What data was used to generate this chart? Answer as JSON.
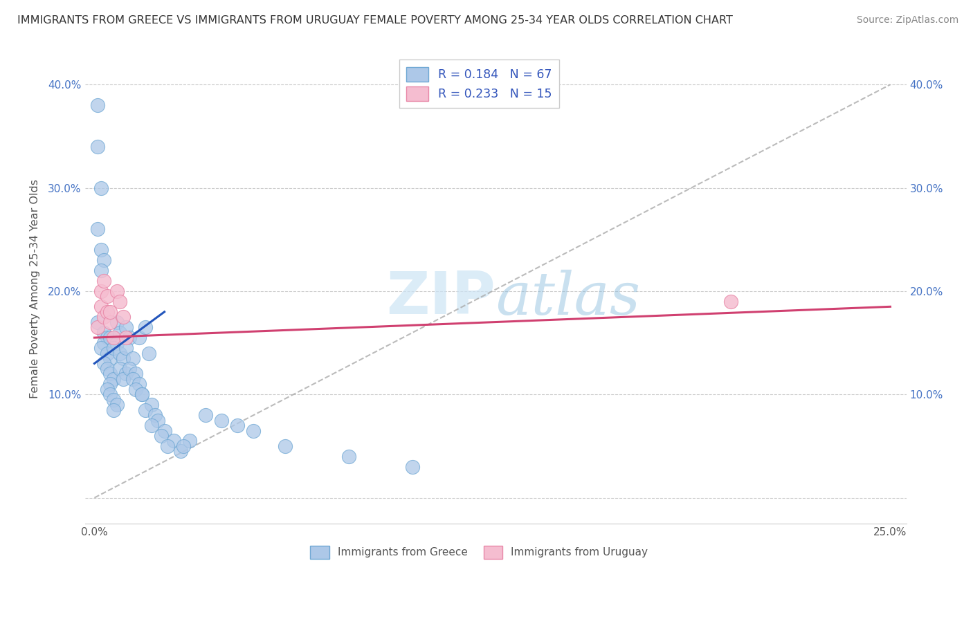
{
  "title": "IMMIGRANTS FROM GREECE VS IMMIGRANTS FROM URUGUAY FEMALE POVERTY AMONG 25-34 YEAR OLDS CORRELATION CHART",
  "source": "Source: ZipAtlas.com",
  "ylabel": "Female Poverty Among 25-34 Year Olds",
  "xlim": [
    -0.003,
    0.255
  ],
  "ylim": [
    -0.025,
    0.43
  ],
  "xtick_positions": [
    0.0,
    0.05,
    0.1,
    0.15,
    0.2,
    0.25
  ],
  "xtick_labels": [
    "0.0%",
    "",
    "",
    "",
    "",
    "25.0%"
  ],
  "ytick_positions": [
    0.0,
    0.1,
    0.2,
    0.3,
    0.4
  ],
  "ytick_labels": [
    "",
    "10.0%",
    "20.0%",
    "30.0%",
    "40.0%"
  ],
  "greece_color": "#adc8e8",
  "greece_edge": "#6fa8d4",
  "uruguay_color": "#f5bdd0",
  "uruguay_edge": "#e888a8",
  "greece_R": 0.184,
  "greece_N": 67,
  "uruguay_R": 0.233,
  "uruguay_N": 15,
  "greece_line_color": "#2255bb",
  "uruguay_line_color": "#d04070",
  "diag_line_color": "#aaaaaa",
  "watermark_color": "#cce4f5",
  "legend_label_greece": "Immigrants from Greece",
  "legend_label_uruguay": "Immigrants from Uruguay",
  "greece_x": [
    0.001,
    0.001,
    0.002,
    0.001,
    0.002,
    0.003,
    0.002,
    0.001,
    0.003,
    0.004,
    0.003,
    0.002,
    0.004,
    0.005,
    0.003,
    0.004,
    0.005,
    0.006,
    0.005,
    0.004,
    0.005,
    0.006,
    0.007,
    0.006,
    0.005,
    0.007,
    0.008,
    0.007,
    0.006,
    0.008,
    0.009,
    0.008,
    0.01,
    0.009,
    0.01,
    0.011,
    0.01,
    0.012,
    0.011,
    0.013,
    0.012,
    0.014,
    0.013,
    0.015,
    0.014,
    0.016,
    0.017,
    0.015,
    0.018,
    0.016,
    0.019,
    0.02,
    0.018,
    0.022,
    0.021,
    0.025,
    0.023,
    0.027,
    0.03,
    0.028,
    0.035,
    0.04,
    0.045,
    0.05,
    0.06,
    0.08,
    0.1
  ],
  "greece_y": [
    0.38,
    0.34,
    0.3,
    0.26,
    0.24,
    0.23,
    0.22,
    0.17,
    0.16,
    0.155,
    0.15,
    0.145,
    0.14,
    0.135,
    0.13,
    0.125,
    0.12,
    0.115,
    0.11,
    0.105,
    0.1,
    0.095,
    0.09,
    0.085,
    0.155,
    0.17,
    0.16,
    0.15,
    0.145,
    0.14,
    0.135,
    0.125,
    0.12,
    0.115,
    0.165,
    0.155,
    0.145,
    0.135,
    0.125,
    0.12,
    0.115,
    0.11,
    0.105,
    0.1,
    0.155,
    0.165,
    0.14,
    0.1,
    0.09,
    0.085,
    0.08,
    0.075,
    0.07,
    0.065,
    0.06,
    0.055,
    0.05,
    0.045,
    0.055,
    0.05,
    0.08,
    0.075,
    0.07,
    0.065,
    0.05,
    0.04,
    0.03
  ],
  "uruguay_x": [
    0.001,
    0.002,
    0.002,
    0.003,
    0.003,
    0.004,
    0.004,
    0.005,
    0.005,
    0.006,
    0.007,
    0.008,
    0.009,
    0.01,
    0.2
  ],
  "uruguay_y": [
    0.165,
    0.2,
    0.185,
    0.21,
    0.175,
    0.18,
    0.195,
    0.17,
    0.18,
    0.155,
    0.2,
    0.19,
    0.175,
    0.155,
    0.19
  ],
  "greece_line_x": [
    0.0,
    0.022
  ],
  "greece_line_y": [
    0.13,
    0.18
  ],
  "uruguay_line_x": [
    0.0,
    0.25
  ],
  "uruguay_line_y": [
    0.155,
    0.185
  ]
}
